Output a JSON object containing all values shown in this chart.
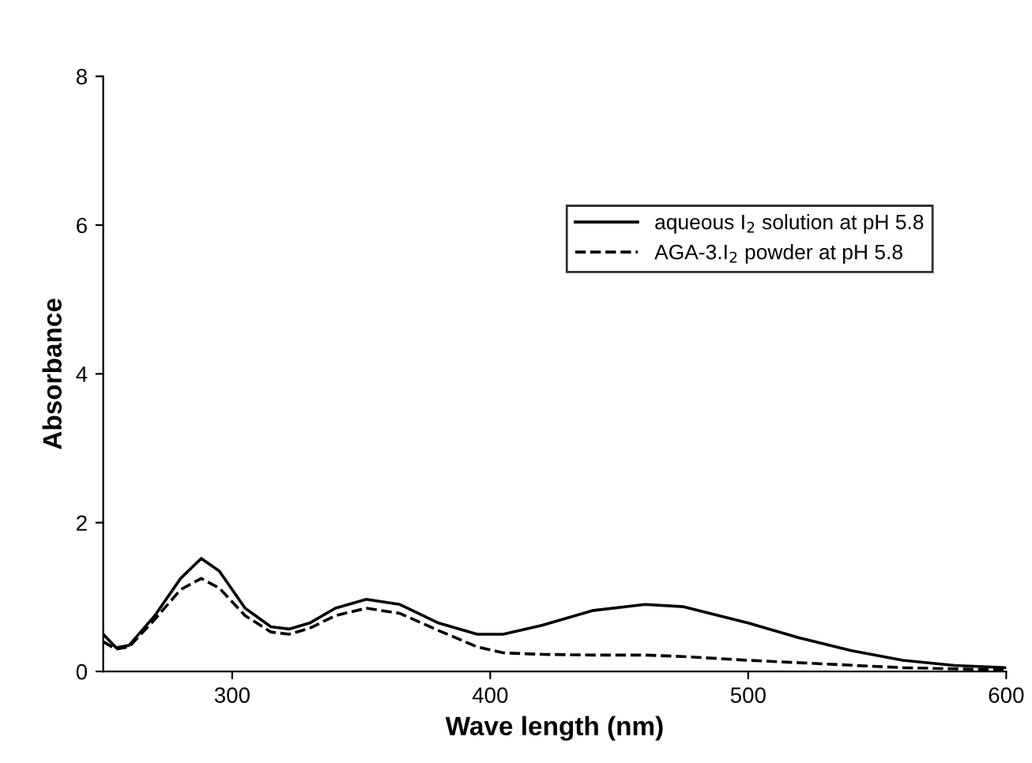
{
  "chart_data": {
    "type": "line",
    "xlabel": "Wave length (nm)",
    "ylabel": "Absorbance",
    "xlim": [
      250,
      600
    ],
    "xticks": [
      300,
      400,
      500,
      600
    ],
    "ylim": [
      0,
      8
    ],
    "yticks": [
      0,
      2,
      4,
      6,
      8
    ],
    "grid": false,
    "legend": "top right",
    "series": [
      {
        "name": "aqueous I$_{2}$ solution at pH 5.8",
        "color": "#000000",
        "line_style": "solid",
        "x": [
          250,
          255,
          260,
          270,
          280,
          288,
          295,
          305,
          315,
          322,
          330,
          340,
          352,
          365,
          380,
          395,
          405,
          420,
          440,
          460,
          475,
          500,
          520,
          540,
          560,
          580,
          600
        ],
        "values": [
          0.5,
          0.32,
          0.35,
          0.75,
          1.25,
          1.52,
          1.35,
          0.85,
          0.6,
          0.57,
          0.65,
          0.85,
          0.97,
          0.9,
          0.65,
          0.5,
          0.5,
          0.62,
          0.82,
          0.9,
          0.87,
          0.65,
          0.45,
          0.28,
          0.15,
          0.08,
          0.05
        ]
      },
      {
        "name": "AGA-3.I$_{2}$ powder at pH 5.8",
        "color": "#000000",
        "line_style": "dashed",
        "x": [
          250,
          255,
          260,
          270,
          280,
          288,
          295,
          305,
          315,
          322,
          330,
          340,
          352,
          365,
          380,
          395,
          405,
          420,
          440,
          460,
          475,
          500,
          530,
          560,
          600
        ],
        "values": [
          0.4,
          0.3,
          0.33,
          0.7,
          1.1,
          1.25,
          1.12,
          0.75,
          0.53,
          0.5,
          0.58,
          0.75,
          0.85,
          0.78,
          0.55,
          0.33,
          0.25,
          0.23,
          0.22,
          0.22,
          0.2,
          0.15,
          0.1,
          0.05,
          0.02
        ]
      }
    ]
  }
}
